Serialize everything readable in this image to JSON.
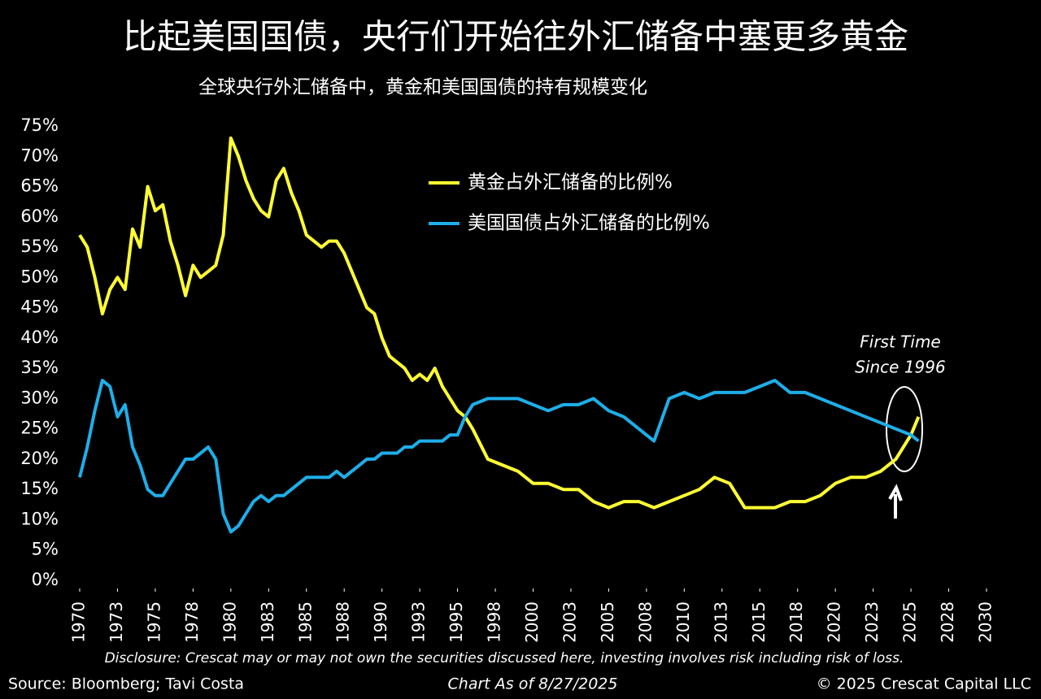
{
  "chart_data": {
    "type": "line",
    "title": "比起美国国债，央行们开始往外汇储备中塞更多黄金",
    "subtitle": "全球央行外汇储备中，黄金和美国国债的持有规模变化",
    "x": [
      1970,
      1970.5,
      1971,
      1971.5,
      1972,
      1972.5,
      1973,
      1973.5,
      1974,
      1974.5,
      1975,
      1975.5,
      1976,
      1976.5,
      1977,
      1977.5,
      1978,
      1978.5,
      1979,
      1979.5,
      1980,
      1980.5,
      1981,
      1981.5,
      1982,
      1982.5,
      1983,
      1983.5,
      1984,
      1984.5,
      1985,
      1985.5,
      1986,
      1986.5,
      1987,
      1987.5,
      1988,
      1988.5,
      1989,
      1989.5,
      1990,
      1990.5,
      1991,
      1991.5,
      1992,
      1992.5,
      1993,
      1993.5,
      1994,
      1994.5,
      1995,
      1995.5,
      1996,
      1997,
      1998,
      1999,
      2000,
      2001,
      2002,
      2003,
      2004,
      2005,
      2006,
      2007,
      2008,
      2009,
      2010,
      2011,
      2012,
      2013,
      2014,
      2015,
      2016,
      2017,
      2018,
      2019,
      2020,
      2021,
      2022,
      2023,
      2024,
      2025,
      2025.5
    ],
    "series": [
      {
        "name": "黄金占外汇储备的比例%",
        "color": "#ffff33",
        "values": [
          57,
          55,
          50,
          44,
          48,
          50,
          48,
          58,
          55,
          65,
          61,
          62,
          56,
          52,
          47,
          52,
          50,
          51,
          52,
          57,
          73,
          70,
          66,
          63,
          61,
          60,
          66,
          68,
          64,
          61,
          57,
          56,
          55,
          56,
          56,
          54,
          51,
          48,
          45,
          44,
          40,
          37,
          36,
          35,
          33,
          34,
          33,
          35,
          32,
          30,
          28,
          27,
          25,
          20,
          19,
          18,
          16,
          16,
          15,
          15,
          13,
          12,
          13,
          13,
          12,
          13,
          14,
          15,
          17,
          16,
          12,
          12,
          12,
          13,
          13,
          14,
          16,
          17,
          17,
          18,
          20,
          24,
          27
        ]
      },
      {
        "name": "美国国债占外汇储备的比例%",
        "color": "#1eaee8",
        "values": [
          17,
          22,
          28,
          33,
          32,
          27,
          29,
          22,
          19,
          15,
          14,
          14,
          16,
          18,
          20,
          20,
          21,
          22,
          20,
          11,
          8,
          9,
          11,
          13,
          14,
          13,
          14,
          14,
          15,
          16,
          17,
          17,
          17,
          17,
          18,
          17,
          18,
          19,
          20,
          20,
          21,
          21,
          21,
          22,
          22,
          23,
          23,
          23,
          23,
          24,
          24,
          27,
          29,
          30,
          30,
          30,
          29,
          28,
          29,
          29,
          30,
          28,
          27,
          25,
          23,
          30,
          31,
          30,
          31,
          31,
          31,
          32,
          33,
          31,
          31,
          30,
          29,
          28,
          27,
          26,
          25,
          24,
          23
        ]
      }
    ],
    "xlim": [
      1970,
      2030
    ],
    "xticks": [
      1970,
      {
        "value": 1972.5,
        "label": "1973"
      },
      1975,
      {
        "value": 1977.5,
        "label": "1978"
      },
      1980,
      {
        "value": 1982.5,
        "label": "1983"
      },
      1985,
      {
        "value": 1987.5,
        "label": "1988"
      },
      1990,
      {
        "value": 1992.5,
        "label": "1993"
      },
      1995,
      {
        "value": 1997.5,
        "label": "1998"
      },
      2000,
      {
        "value": 2002.5,
        "label": "2003"
      },
      2005,
      {
        "value": 2007.5,
        "label": "2008"
      },
      2010,
      {
        "value": 2012.5,
        "label": "2013"
      },
      2015,
      {
        "value": 2017.5,
        "label": "2018"
      },
      2020,
      {
        "value": 2022.5,
        "label": "2023"
      },
      2025,
      {
        "value": 2027.5,
        "label": "2028"
      },
      2030
    ],
    "ylim": [
      0,
      75
    ],
    "yticks": [
      {
        "value": 0,
        "label": "0%"
      },
      {
        "value": 5,
        "label": "5%"
      },
      {
        "value": 10,
        "label": "10%"
      },
      {
        "value": 15,
        "label": "15%"
      },
      {
        "value": 20,
        "label": "20%"
      },
      {
        "value": 25,
        "label": "25%"
      },
      {
        "value": 30,
        "label": "30%"
      },
      {
        "value": 35,
        "label": "35%"
      },
      {
        "value": 40,
        "label": "40%"
      },
      {
        "value": 45,
        "label": "45%"
      },
      {
        "value": 50,
        "label": "50%"
      },
      {
        "value": 55,
        "label": "55%"
      },
      {
        "value": 60,
        "label": "60%"
      },
      {
        "value": 65,
        "label": "65%"
      },
      {
        "value": 70,
        "label": "70%"
      },
      {
        "value": 75,
        "label": "75%"
      }
    ],
    "annotation": [
      "First Time",
      "Since 1996"
    ],
    "disclosure": "Disclosure: Crescat may or may not own the securities discussed here, investing involves risk including risk of loss.",
    "source": "Source: Bloomberg; Tavi Costa",
    "chart_date": "Chart As of 8/27/2025",
    "copyright": "© 2025 Crescat Capital LLC"
  }
}
